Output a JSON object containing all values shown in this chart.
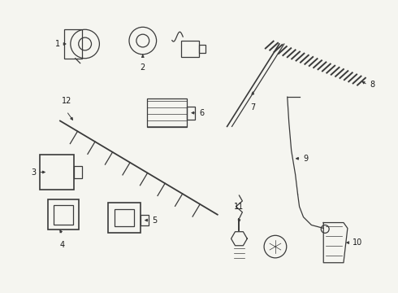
{
  "bg_color": "#f5f5f0",
  "line_color": "#3a3a3a",
  "text_color": "#1a1a1a",
  "fig_w": 4.9,
  "fig_h": 3.6,
  "dpi": 100,
  "label_fontsize": 7.0
}
